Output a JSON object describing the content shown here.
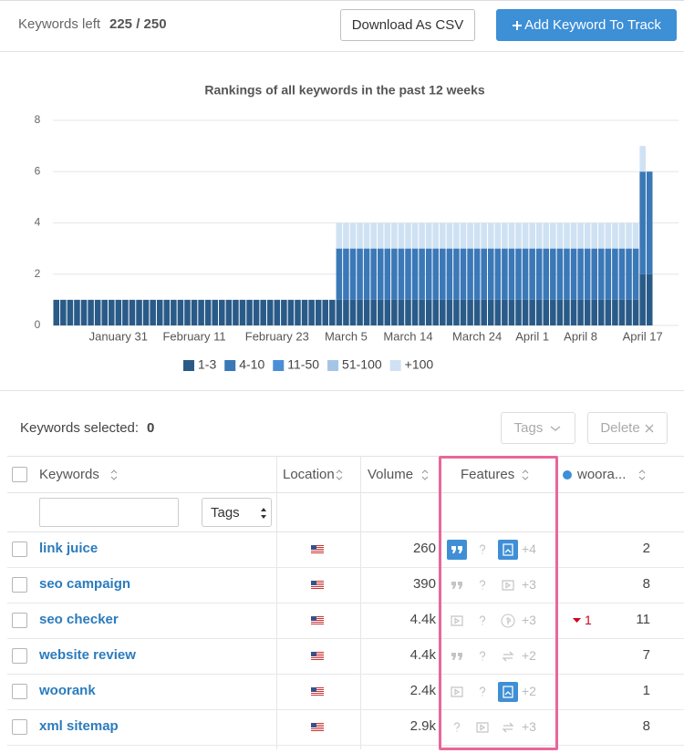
{
  "header": {
    "keywords_left_label": "Keywords left",
    "keywords_left_value": "225 / 250",
    "download_button": "Download As CSV",
    "add_button": "Add Keyword To Track"
  },
  "chart_data": {
    "type": "stacked-bar",
    "title": "Rankings of all keywords in the past 12 weeks",
    "categories": [
      null,
      null,
      null,
      null,
      null,
      null,
      null,
      null,
      null,
      "January 31",
      null,
      null,
      null,
      null,
      null,
      null,
      null,
      null,
      null,
      null,
      "February 11",
      null,
      null,
      null,
      null,
      null,
      null,
      null,
      null,
      null,
      null,
      null,
      "February 23",
      null,
      null,
      null,
      null,
      null,
      null,
      null,
      null,
      null,
      "March 5",
      null,
      null,
      null,
      null,
      null,
      null,
      null,
      null,
      "March 14",
      null,
      null,
      null,
      null,
      null,
      null,
      null,
      null,
      null,
      "March 24",
      null,
      null,
      null,
      null,
      null,
      null,
      null,
      "April 1",
      null,
      null,
      null,
      null,
      null,
      null,
      "April 8",
      null,
      null,
      null,
      null,
      null,
      null,
      null,
      null,
      "April 17",
      null
    ],
    "series": [
      {
        "name": "1-3",
        "color": "#2a5b88",
        "values": [
          1,
          1,
          1,
          1,
          1,
          1,
          1,
          1,
          1,
          1,
          1,
          1,
          1,
          1,
          1,
          1,
          1,
          1,
          1,
          1,
          1,
          1,
          1,
          1,
          1,
          1,
          1,
          1,
          1,
          1,
          1,
          1,
          1,
          1,
          1,
          1,
          1,
          1,
          1,
          1,
          1,
          1,
          1,
          1,
          1,
          1,
          1,
          1,
          1,
          1,
          1,
          1,
          1,
          1,
          1,
          1,
          1,
          1,
          1,
          1,
          1,
          1,
          1,
          1,
          1,
          1,
          1,
          1,
          1,
          1,
          1,
          1,
          1,
          1,
          1,
          1,
          1,
          1,
          1,
          1,
          1,
          1,
          1,
          1,
          1,
          2,
          2
        ]
      },
      {
        "name": "4-10",
        "color": "#3b78b7",
        "values": [
          0,
          0,
          0,
          0,
          0,
          0,
          0,
          0,
          0,
          0,
          0,
          0,
          0,
          0,
          0,
          0,
          0,
          0,
          0,
          0,
          0,
          0,
          0,
          0,
          0,
          0,
          0,
          0,
          0,
          0,
          0,
          0,
          0,
          0,
          0,
          0,
          0,
          0,
          0,
          0,
          0,
          2,
          2,
          2,
          2,
          2,
          2,
          2,
          2,
          2,
          2,
          2,
          2,
          2,
          2,
          2,
          2,
          2,
          2,
          2,
          2,
          2,
          2,
          2,
          2,
          2,
          2,
          2,
          2,
          2,
          2,
          2,
          2,
          2,
          2,
          2,
          2,
          2,
          2,
          2,
          2,
          2,
          2,
          2,
          2,
          4,
          4
        ]
      },
      {
        "name": "11-50",
        "color": "#4a8fd6",
        "values": [
          0,
          0,
          0,
          0,
          0,
          0,
          0,
          0,
          0,
          0,
          0,
          0,
          0,
          0,
          0,
          0,
          0,
          0,
          0,
          0,
          0,
          0,
          0,
          0,
          0,
          0,
          0,
          0,
          0,
          0,
          0,
          0,
          0,
          0,
          0,
          0,
          0,
          0,
          0,
          0,
          0,
          0,
          0,
          0,
          0,
          0,
          0,
          0,
          0,
          0,
          0,
          0,
          0,
          0,
          0,
          0,
          0,
          0,
          0,
          0,
          0,
          0,
          0,
          0,
          0,
          0,
          0,
          0,
          0,
          0,
          0,
          0,
          0,
          0,
          0,
          0,
          0,
          0,
          0,
          0,
          0,
          0,
          0,
          0,
          0,
          0,
          0
        ]
      },
      {
        "name": "51-100",
        "color": "#a5c5e6",
        "values": [
          0,
          0,
          0,
          0,
          0,
          0,
          0,
          0,
          0,
          0,
          0,
          0,
          0,
          0,
          0,
          0,
          0,
          0,
          0,
          0,
          0,
          0,
          0,
          0,
          0,
          0,
          0,
          0,
          0,
          0,
          0,
          0,
          0,
          0,
          0,
          0,
          0,
          0,
          0,
          0,
          0,
          0,
          0,
          0,
          0,
          0,
          0,
          0,
          0,
          0,
          0,
          0,
          0,
          0,
          0,
          0,
          0,
          0,
          0,
          0,
          0,
          0,
          0,
          0,
          0,
          0,
          0,
          0,
          0,
          0,
          0,
          0,
          0,
          0,
          0,
          0,
          0,
          0,
          0,
          0,
          0,
          0,
          0,
          0,
          0,
          0,
          0
        ]
      },
      {
        "name": "+100",
        "color": "#cfe2f3",
        "values": [
          0,
          0,
          0,
          0,
          0,
          0,
          0,
          0,
          0,
          0,
          0,
          0,
          0,
          0,
          0,
          0,
          0,
          0,
          0,
          0,
          0,
          0,
          0,
          0,
          0,
          0,
          0,
          0,
          0,
          0,
          0,
          0,
          0,
          0,
          0,
          0,
          0,
          0,
          0,
          0,
          0,
          1,
          1,
          1,
          1,
          1,
          1,
          1,
          1,
          1,
          1,
          1,
          1,
          1,
          1,
          1,
          1,
          1,
          1,
          1,
          1,
          1,
          1,
          1,
          1,
          1,
          1,
          1,
          1,
          1,
          1,
          1,
          1,
          1,
          1,
          1,
          1,
          1,
          1,
          1,
          1,
          1,
          1,
          1,
          1,
          1,
          0
        ]
      }
    ],
    "ylim": [
      0,
      8
    ],
    "yticks": [
      0,
      2,
      4,
      6,
      8
    ],
    "grid": true,
    "legend": "bottom"
  },
  "toolbar": {
    "selected_label": "Keywords selected:",
    "selected_count": 0,
    "tags_button": "Tags",
    "delete_button": "Delete"
  },
  "table": {
    "columns": {
      "keywords": "Keywords",
      "location": "Location",
      "volume": "Volume",
      "features": "Features",
      "site": "woora..."
    },
    "filter_tags": "Tags",
    "rows": [
      {
        "keyword": "link juice",
        "volume": "260",
        "features_more": "+4",
        "rank": 2
      },
      {
        "keyword": "seo campaign",
        "volume": "390",
        "features_more": "+3",
        "rank": 8
      },
      {
        "keyword": "seo checker",
        "volume": "4.4k",
        "features_more": "+3",
        "change": 1,
        "rank": 11
      },
      {
        "keyword": "website review",
        "volume": "4.4k",
        "features_more": "+2",
        "rank": 7
      },
      {
        "keyword": "woorank",
        "volume": "2.4k",
        "features_more": "+2",
        "rank": 1
      },
      {
        "keyword": "xml sitemap",
        "volume": "2.9k",
        "features_more": "+3",
        "rank": 8
      }
    ]
  }
}
